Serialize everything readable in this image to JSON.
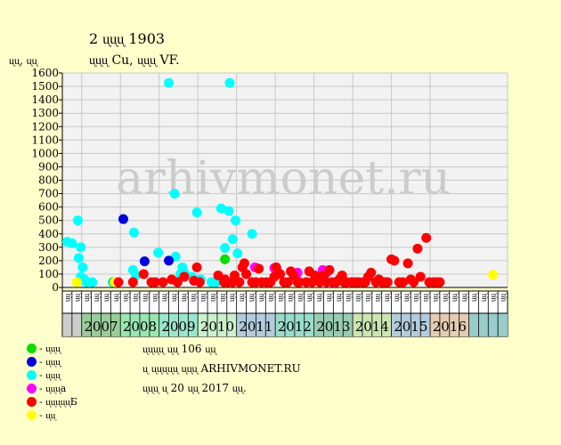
{
  "header": {
    "title": "2 ᶙᶙᶙ 1903",
    "subtitle": "ᶙᶙᶙ Cu, ᶙᶙᶙ VF.",
    "ylabel": "ᶙᶙ, ᶙᶙ"
  },
  "watermark": "arhivmonet.ru",
  "colors": {
    "background": "#ffffcc",
    "plot_bg": "#f2f2f2",
    "grid": "#c8c8c8",
    "watermark": "#cccccc"
  },
  "legend": [
    {
      "label": "- ᶙᶙᶙ",
      "color": "#00e000"
    },
    {
      "label": "- ᶙᶙᶙ",
      "color": "#0000dd"
    },
    {
      "label": "- ᶙᶙᶙ",
      "color": "#00ffff"
    },
    {
      "label": "- ᶙᶙᶙa",
      "color": "#ff00ff"
    },
    {
      "label": "- ᶙᶙᶙᶙᶙБ",
      "color": "#ff0000"
    },
    {
      "label": "- ᶙᶙ",
      "color": "#ffff00"
    }
  ],
  "notes": [
    "ᶙᶙᶙᶙ ᶙᶙ 106 ᶙᶙ",
    "ᶙ ᶙᶙᶙᶙᶙ ᶙᶙᶙ ARHIVMONET.RU",
    "ᶙᶙᶙ ᶙ 20 ᶙᶙ 2017 ᶙᶙ."
  ],
  "chart_data": {
    "type": "scatter",
    "title": "2 ᶙᶙᶙ 1903",
    "subtitle": "ᶙᶙᶙ Cu, ᶙᶙᶙ VF.",
    "ylabel": "ᶙᶙ, ᶙᶙ",
    "ylim": [
      0,
      1600
    ],
    "yticks": [
      0,
      100,
      200,
      300,
      400,
      500,
      600,
      700,
      800,
      900,
      1000,
      1100,
      1200,
      1300,
      1400,
      1500,
      1600
    ],
    "grid": true,
    "xlim": [
      0,
      46
    ],
    "quarters": [
      "ᶙᶙ",
      "ᶙᶙ",
      "ᶙᶙ",
      "ᶙᶙ",
      "ᶙᶙ",
      "ᶙᶙ",
      "ᶙᶙ",
      "ᶙᶙ",
      "ᶙᶙ",
      "ᶙᶙ",
      "ᶙᶙ",
      "ᶙᶙ",
      "ᶙᶙ",
      "ᶙᶙ",
      "ᶙᶙ",
      "ᶙᶙ",
      "ᶙᶙ",
      "ᶙᶙ",
      "ᶙᶙ",
      "ᶙᶙ",
      "ᶙᶙ",
      "ᶙᶙ",
      "ᶙᶙ",
      "ᶙᶙ",
      "ᶙᶙ",
      "ᶙᶙ",
      "ᶙᶙ",
      "ᶙᶙ",
      "ᶙᶙ",
      "ᶙᶙ",
      "ᶙᶙ",
      "ᶙᶙ",
      "ᶙᶙ",
      "ᶙᶙ",
      "ᶙᶙ",
      "ᶙᶙ",
      "ᶙᶙ",
      "ᶙᶙ",
      "ᶙᶙ",
      "ᶙᶙ",
      "ᶙᶙ",
      "ᶙᶙ",
      "ᶙᶙ",
      "ᶙᶙ",
      "ᶙᶙ",
      "ᶙᶙ"
    ],
    "years": [
      {
        "label": "2007",
        "start": 2,
        "end": 6,
        "color": "#99cc99"
      },
      {
        "label": "2008",
        "start": 6,
        "end": 10,
        "color": "#99e6b3"
      },
      {
        "label": "2009",
        "start": 10,
        "end": 14,
        "color": "#99e6cc"
      },
      {
        "label": "2010",
        "start": 14,
        "end": 18,
        "color": "#ccf0cc"
      },
      {
        "label": "2011",
        "start": 18,
        "end": 22,
        "color": "#b3ccdd"
      },
      {
        "label": "2012",
        "start": 22,
        "end": 26,
        "color": "#99ddcc"
      },
      {
        "label": "2013",
        "start": 26,
        "end": 30,
        "color": "#99ccb3"
      },
      {
        "label": "2014",
        "start": 30,
        "end": 34,
        "color": "#cce6b3"
      },
      {
        "label": "2015",
        "start": 34,
        "end": 38,
        "color": "#b3ccdd"
      },
      {
        "label": "2016",
        "start": 38,
        "end": 42,
        "color": "#e6ccb3"
      }
    ],
    "series": [
      {
        "color": "#00ffff",
        "points": [
          [
            0.5,
            340
          ],
          [
            1.0,
            330
          ],
          [
            1.6,
            500
          ],
          [
            1.7,
            220
          ],
          [
            1.9,
            300
          ],
          [
            2.1,
            150
          ],
          [
            1.9,
            80
          ],
          [
            2.3,
            60
          ],
          [
            2.5,
            40
          ],
          [
            3.1,
            40
          ],
          [
            5.2,
            40
          ],
          [
            7.3,
            130
          ],
          [
            7.4,
            410
          ],
          [
            7.6,
            90
          ],
          [
            9.9,
            260
          ],
          [
            11.0,
            1525
          ],
          [
            11.6,
            700
          ],
          [
            11.7,
            230
          ],
          [
            12.2,
            100
          ],
          [
            12.4,
            150
          ],
          [
            12.6,
            110
          ],
          [
            13.4,
            80
          ],
          [
            13.9,
            560
          ],
          [
            14.3,
            60
          ],
          [
            15.4,
            40
          ],
          [
            15.9,
            40
          ],
          [
            16.4,
            590
          ],
          [
            16.8,
            295
          ],
          [
            17.2,
            570
          ],
          [
            17.3,
            1525
          ],
          [
            17.6,
            360
          ],
          [
            17.9,
            500
          ],
          [
            18.1,
            255
          ],
          [
            19.6,
            400
          ]
        ]
      },
      {
        "color": "#0000dd",
        "points": [
          [
            6.3,
            510
          ],
          [
            8.5,
            195
          ],
          [
            11.0,
            200
          ]
        ]
      },
      {
        "color": "#ff00ff",
        "points": [
          [
            19.9,
            150
          ],
          [
            21.9,
            145
          ],
          [
            22.3,
            110
          ],
          [
            24.3,
            110
          ],
          [
            26.9,
            130
          ],
          [
            27.3,
            110
          ]
        ]
      },
      {
        "color": "#00e000",
        "points": [
          [
            5.3,
            40
          ],
          [
            16.8,
            210
          ]
        ]
      },
      {
        "color": "#ffff00",
        "points": [
          [
            1.5,
            40
          ],
          [
            5.4,
            40
          ],
          [
            44.5,
            95
          ]
        ]
      },
      {
        "color": "#ff0000",
        "points": [
          [
            5.8,
            40
          ],
          [
            7.3,
            40
          ],
          [
            8.4,
            100
          ],
          [
            9.2,
            40
          ],
          [
            9.6,
            40
          ],
          [
            10.4,
            40
          ],
          [
            11.3,
            60
          ],
          [
            11.9,
            40
          ],
          [
            12.6,
            80
          ],
          [
            13.6,
            50
          ],
          [
            13.9,
            150
          ],
          [
            14.2,
            40
          ],
          [
            16.1,
            90
          ],
          [
            16.7,
            40
          ],
          [
            16.8,
            60
          ],
          [
            17.1,
            40
          ],
          [
            17.6,
            40
          ],
          [
            17.8,
            90
          ],
          [
            18.3,
            40
          ],
          [
            18.6,
            150
          ],
          [
            18.8,
            180
          ],
          [
            19.0,
            100
          ],
          [
            19.6,
            40
          ],
          [
            20.0,
            40
          ],
          [
            20.3,
            140
          ],
          [
            20.6,
            40
          ],
          [
            21.1,
            40
          ],
          [
            21.5,
            40
          ],
          [
            21.9,
            80
          ],
          [
            22.1,
            150
          ],
          [
            22.5,
            100
          ],
          [
            22.9,
            40
          ],
          [
            23.3,
            40
          ],
          [
            23.6,
            120
          ],
          [
            23.9,
            90
          ],
          [
            24.3,
            40
          ],
          [
            24.5,
            40
          ],
          [
            25.2,
            40
          ],
          [
            25.5,
            120
          ],
          [
            25.8,
            40
          ],
          [
            26.1,
            90
          ],
          [
            26.6,
            40
          ],
          [
            27.0,
            90
          ],
          [
            27.3,
            40
          ],
          [
            27.6,
            130
          ],
          [
            27.9,
            40
          ],
          [
            28.3,
            40
          ],
          [
            28.6,
            60
          ],
          [
            28.9,
            90
          ],
          [
            29.1,
            40
          ],
          [
            29.4,
            40
          ],
          [
            29.9,
            40
          ],
          [
            30.3,
            40
          ],
          [
            30.6,
            40
          ],
          [
            31.0,
            40
          ],
          [
            31.3,
            40
          ],
          [
            31.6,
            80
          ],
          [
            31.9,
            110
          ],
          [
            32.4,
            40
          ],
          [
            32.7,
            60
          ],
          [
            33.0,
            40
          ],
          [
            33.3,
            40
          ],
          [
            33.6,
            40
          ],
          [
            34.0,
            210
          ],
          [
            34.3,
            200
          ],
          [
            34.8,
            40
          ],
          [
            35.2,
            40
          ],
          [
            35.7,
            180
          ],
          [
            36.0,
            60
          ],
          [
            36.3,
            40
          ],
          [
            36.7,
            290
          ],
          [
            37.0,
            80
          ],
          [
            37.6,
            370
          ],
          [
            37.9,
            40
          ],
          [
            38.3,
            40
          ],
          [
            38.6,
            40
          ],
          [
            39.0,
            40
          ]
        ]
      }
    ]
  }
}
